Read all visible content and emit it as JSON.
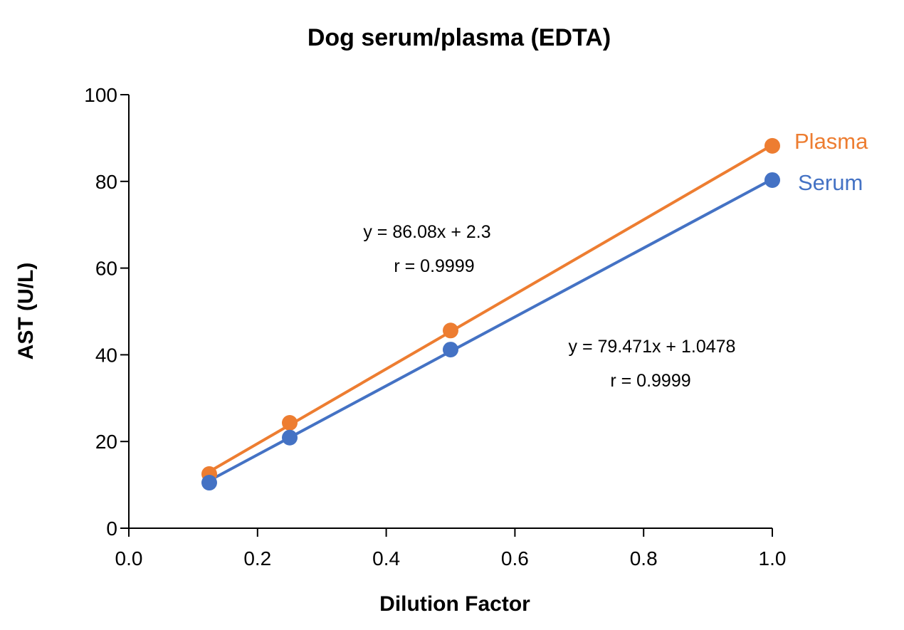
{
  "chart_data": {
    "type": "scatter",
    "title": "Dog serum/plasma (EDTA)",
    "xlabel": "Dilution Factor",
    "ylabel": "AST (U/L)",
    "xlim": [
      0,
      1.0
    ],
    "ylim": [
      0,
      100
    ],
    "xticks": [
      "0.0",
      "0.2",
      "0.4",
      "0.6",
      "0.8",
      "1.0"
    ],
    "yticks": [
      "0",
      "20",
      "40",
      "60",
      "80",
      "100"
    ],
    "grid": false,
    "legend": "inline labels at right end of series",
    "series": [
      {
        "name": "Plasma",
        "color": "#ED7D31",
        "x": [
          0.125,
          0.25,
          0.5,
          1.0
        ],
        "y": [
          12.5,
          24.3,
          45.6,
          88.2
        ],
        "trendline": {
          "slope": 86.08,
          "intercept": 2.3
        },
        "equation": "y = 86.08x + 2.3",
        "r": "r = 0.9999"
      },
      {
        "name": "Serum",
        "color": "#4472C4",
        "x": [
          0.125,
          0.25,
          0.5,
          1.0
        ],
        "y": [
          10.5,
          20.9,
          41.2,
          80.3
        ],
        "trendline": {
          "slope": 79.471,
          "intercept": 1.0478
        },
        "equation": "y = 79.471x + 1.0478",
        "r": "r = 0.9999"
      }
    ]
  }
}
